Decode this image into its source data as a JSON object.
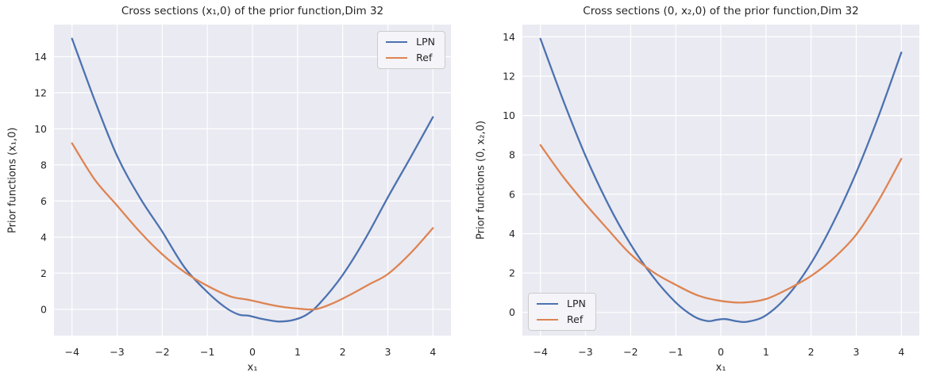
{
  "figure": {
    "background": "#ffffff",
    "axes_background": "#eaeaf2",
    "grid_color": "#ffffff",
    "text_color": "#262626",
    "legend_background": "#f4f4f9",
    "legend_border": "#cccccc"
  },
  "chart_data": [
    {
      "type": "line",
      "title": "Cross sections (x₁,0) of the prior function,Dim 32",
      "xlabel": "x₁",
      "ylabel": "Prior functions (x₁,0)",
      "xlim": [
        -4.4,
        4.4
      ],
      "ylim": [
        -1.46,
        15.78
      ],
      "xticks": [
        -4,
        -3,
        -2,
        -1,
        0,
        1,
        2,
        3,
        4
      ],
      "xtick_labels": [
        "−4",
        "−3",
        "−2",
        "−1",
        "0",
        "1",
        "2",
        "3",
        "4"
      ],
      "yticks": [
        0,
        2,
        4,
        6,
        8,
        10,
        12,
        14
      ],
      "ytick_labels": [
        "0",
        "2",
        "4",
        "6",
        "8",
        "10",
        "12",
        "14"
      ],
      "grid": true,
      "legend_position": "upper right",
      "series": [
        {
          "name": "LPN",
          "color": "#4c72b0",
          "x": [
            -4,
            -3.5,
            -3,
            -2.5,
            -2,
            -1.5,
            -1,
            -0.6,
            -0.3,
            -0.1,
            0.15,
            0.4,
            0.6,
            0.9,
            1.2,
            1.5,
            2,
            2.5,
            3,
            3.5,
            4
          ],
          "y": [
            15.0,
            11.6,
            8.5,
            6.2,
            4.3,
            2.3,
            0.95,
            0.1,
            -0.3,
            -0.35,
            -0.5,
            -0.62,
            -0.68,
            -0.6,
            -0.3,
            0.35,
            1.9,
            3.9,
            6.2,
            8.4,
            10.65
          ]
        },
        {
          "name": "Ref",
          "color": "#dd8452",
          "x": [
            -4,
            -3.5,
            -3,
            -2.5,
            -2,
            -1.5,
            -1,
            -0.5,
            -0.15,
            0.1,
            0.4,
            0.7,
            1,
            1.4,
            1.8,
            2.2,
            2.6,
            3,
            3.5,
            4
          ],
          "y": [
            9.2,
            7.2,
            5.75,
            4.3,
            3.05,
            2.05,
            1.3,
            0.72,
            0.55,
            0.42,
            0.25,
            0.12,
            0.04,
            0.0,
            0.35,
            0.85,
            1.4,
            1.95,
            3.1,
            4.5
          ]
        }
      ]
    },
    {
      "type": "line",
      "title": "Cross sections (0, x₂,0) of the prior function,Dim 32",
      "xlabel": "x₁",
      "ylabel": "Prior functions (0, x₂,0)",
      "xlim": [
        -4.4,
        4.4
      ],
      "ylim": [
        -1.18,
        14.62
      ],
      "xticks": [
        -4,
        -3,
        -2,
        -1,
        0,
        1,
        2,
        3,
        4
      ],
      "xtick_labels": [
        "−4",
        "−3",
        "−2",
        "−1",
        "0",
        "1",
        "2",
        "3",
        "4"
      ],
      "yticks": [
        0,
        2,
        4,
        6,
        8,
        10,
        12,
        14
      ],
      "ytick_labels": [
        "0",
        "2",
        "4",
        "6",
        "8",
        "10",
        "12",
        "14"
      ],
      "grid": true,
      "legend_position": "lower left",
      "series": [
        {
          "name": "LPN",
          "color": "#4c72b0",
          "x": [
            -4,
            -3.5,
            -3,
            -2.5,
            -2,
            -1.5,
            -1,
            -0.6,
            -0.3,
            -0.1,
            0.1,
            0.35,
            0.6,
            1,
            1.5,
            2,
            2.5,
            3,
            3.5,
            4
          ],
          "y": [
            13.9,
            10.8,
            7.95,
            5.5,
            3.45,
            1.8,
            0.5,
            -0.2,
            -0.44,
            -0.38,
            -0.34,
            -0.45,
            -0.47,
            -0.15,
            0.9,
            2.5,
            4.6,
            7.1,
            10.0,
            13.2
          ]
        },
        {
          "name": "Ref",
          "color": "#dd8452",
          "x": [
            -4,
            -3.5,
            -3,
            -2.5,
            -2,
            -1.5,
            -1,
            -0.5,
            0,
            0.5,
            1,
            1.5,
            2,
            2.5,
            3,
            3.5,
            4
          ],
          "y": [
            8.5,
            6.9,
            5.5,
            4.2,
            2.95,
            2.05,
            1.4,
            0.85,
            0.58,
            0.5,
            0.68,
            1.2,
            1.85,
            2.75,
            3.95,
            5.7,
            7.8
          ]
        }
      ]
    }
  ]
}
